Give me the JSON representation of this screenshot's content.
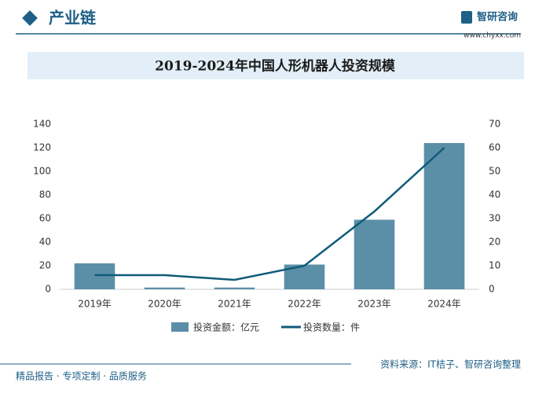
{
  "header": {
    "title": "产业链",
    "logo_text": "智研咨询",
    "url": "www.chyxx.com"
  },
  "chart_data": {
    "type": "bar-line",
    "title": "2019-2024年中国人形机器人投资规模",
    "categories": [
      "2019年",
      "2020年",
      "2021年",
      "2022年",
      "2023年",
      "2024年"
    ],
    "series": [
      {
        "name": "投资金额：亿元",
        "type": "bar",
        "color": "#5b8fa8",
        "values": [
          22,
          1.5,
          1.5,
          21,
          59,
          124
        ]
      },
      {
        "name": "投资数量：件",
        "type": "line",
        "axis": "y2",
        "color": "#0f5b7a",
        "values": [
          6,
          6,
          4,
          10,
          33,
          60
        ]
      }
    ],
    "ylim": [
      0,
      140
    ],
    "yticks": [
      0,
      20,
      40,
      60,
      80,
      100,
      120,
      140
    ],
    "y2lim": [
      0,
      70
    ],
    "y2ticks": [
      0,
      10,
      20,
      30,
      40,
      50,
      60,
      70
    ],
    "legend": "bottom"
  },
  "footer": {
    "tagline": "精品报告 · 专项定制 · 品质服务",
    "source": "资料来源：IT桔子、智研咨询整理"
  }
}
